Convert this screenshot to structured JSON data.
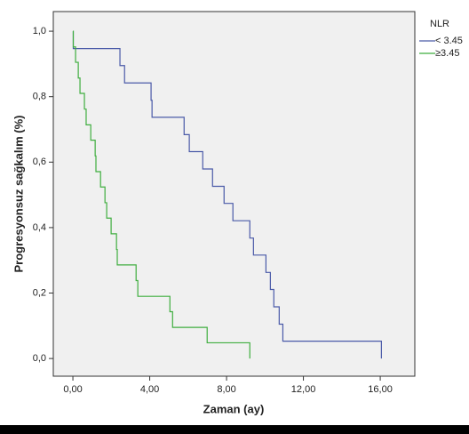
{
  "chart_data": {
    "type": "step",
    "xlabel": "Zaman (ay)",
    "ylabel": "Progresyonsuz sağkalım (%)",
    "legend_title": "NLR",
    "legend": "top-right-outside",
    "xlim": [
      -1.02,
      17.8
    ],
    "ylim": [
      -0.054,
      1.06
    ],
    "xticks": [
      {
        "value": 0,
        "label": "0,00"
      },
      {
        "value": 4,
        "label": "4,00"
      },
      {
        "value": 8,
        "label": "8,00"
      },
      {
        "value": 12,
        "label": "12,00"
      },
      {
        "value": 16,
        "label": "16,00"
      }
    ],
    "yticks": [
      {
        "value": 0,
        "label": "0,0"
      },
      {
        "value": 0.2,
        "label": "0,2"
      },
      {
        "value": 0.4,
        "label": "0,4"
      },
      {
        "value": 0.6,
        "label": "0,6"
      },
      {
        "value": 0.8,
        "label": "0,8"
      },
      {
        "value": 1,
        "label": "1,0"
      }
    ],
    "series": [
      {
        "name": "< 3.45",
        "color": "#4a5aa8",
        "x": [
          0,
          0.02,
          2.45,
          2.69,
          4.07,
          4.12,
          5.79,
          6.06,
          6.76,
          7.27,
          7.87,
          8.33,
          9.21,
          9.4,
          10.05,
          10.28,
          10.46,
          10.74,
          10.93,
          16.06
        ],
        "values": [
          1,
          0.947,
          0.895,
          0.842,
          0.789,
          0.737,
          0.684,
          0.632,
          0.579,
          0.526,
          0.474,
          0.421,
          0.368,
          0.316,
          0.263,
          0.211,
          0.158,
          0.105,
          0.053,
          0
        ]
      },
      {
        "name": "≥3.45",
        "color": "#3fae3f",
        "x": [
          0,
          0.02,
          0.14,
          0.28,
          0.37,
          0.6,
          0.69,
          0.93,
          1.16,
          1.2,
          1.44,
          1.67,
          1.76,
          1.99,
          2.27,
          2.31,
          3.29,
          3.38,
          5.05,
          5.19,
          6.99,
          9.21
        ],
        "values": [
          1,
          0.952,
          0.905,
          0.857,
          0.81,
          0.762,
          0.714,
          0.667,
          0.619,
          0.571,
          0.524,
          0.476,
          0.429,
          0.381,
          0.333,
          0.286,
          0.238,
          0.19,
          0.143,
          0.095,
          0.048,
          0
        ]
      }
    ]
  }
}
